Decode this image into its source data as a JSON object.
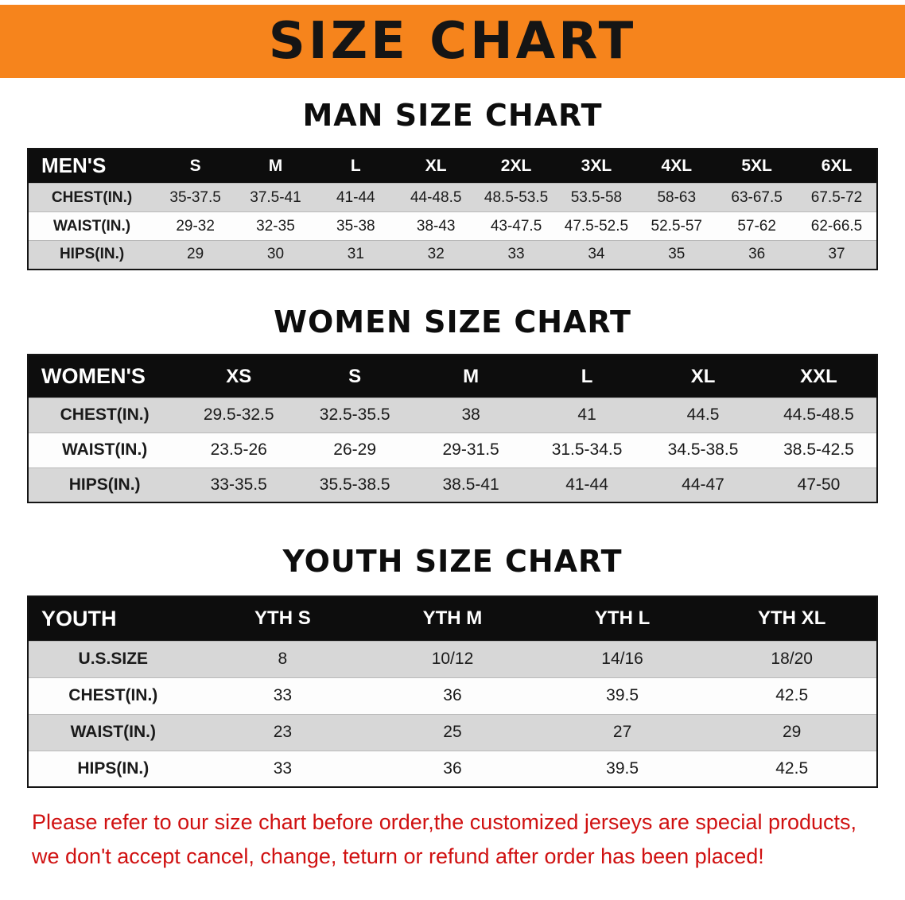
{
  "banner": {
    "title": "SIZE CHART",
    "bg_color": "#f6841c"
  },
  "footer": {
    "line1": "Please refer to our size chart before order,the customized jerseys are special products,",
    "line2": "we don't accept cancel, change, teturn or refund after order has been placed!",
    "text_color": "#d01111"
  },
  "colors": {
    "header_row_bg": "#0d0d0d",
    "header_row_text": "#ffffff",
    "alt_row_bg": "#d7d7d7"
  },
  "chart_data": [
    {
      "type": "table",
      "title": "MAN SIZE CHART",
      "header": [
        "MEN'S",
        "S",
        "M",
        "L",
        "XL",
        "2XL",
        "3XL",
        "4XL",
        "5XL",
        "6XL"
      ],
      "rows": [
        [
          "CHEST(IN.)",
          "35-37.5",
          "37.5-41",
          "41-44",
          "44-48.5",
          "48.5-53.5",
          "53.5-58",
          "58-63",
          "63-67.5",
          "67.5-72"
        ],
        [
          "WAIST(IN.)",
          "29-32",
          "32-35",
          "35-38",
          "38-43",
          "43-47.5",
          "47.5-52.5",
          "52.5-57",
          "57-62",
          "62-66.5"
        ],
        [
          "HIPS(IN.)",
          "29",
          "30",
          "31",
          "32",
          "33",
          "34",
          "35",
          "36",
          "37"
        ]
      ]
    },
    {
      "type": "table",
      "title": "WOMEN SIZE CHART",
      "header": [
        "WOMEN'S",
        "XS",
        "S",
        "M",
        "L",
        "XL",
        "XXL"
      ],
      "rows": [
        [
          "CHEST(IN.)",
          "29.5-32.5",
          "32.5-35.5",
          "38",
          "41",
          "44.5",
          "44.5-48.5"
        ],
        [
          "WAIST(IN.)",
          "23.5-26",
          "26-29",
          "29-31.5",
          "31.5-34.5",
          "34.5-38.5",
          "38.5-42.5"
        ],
        [
          "HIPS(IN.)",
          "33-35.5",
          "35.5-38.5",
          "38.5-41",
          "41-44",
          "44-47",
          "47-50"
        ]
      ]
    },
    {
      "type": "table",
      "title": "YOUTH SIZE CHART",
      "header": [
        "YOUTH",
        "YTH S",
        "YTH M",
        "YTH L",
        "YTH XL"
      ],
      "rows": [
        [
          "U.S.SIZE",
          "8",
          "10/12",
          "14/16",
          "18/20"
        ],
        [
          "CHEST(IN.)",
          "33",
          "36",
          "39.5",
          "42.5"
        ],
        [
          "WAIST(IN.)",
          "23",
          "25",
          "27",
          "29"
        ],
        [
          "HIPS(IN.)",
          "33",
          "36",
          "39.5",
          "42.5"
        ]
      ]
    }
  ]
}
